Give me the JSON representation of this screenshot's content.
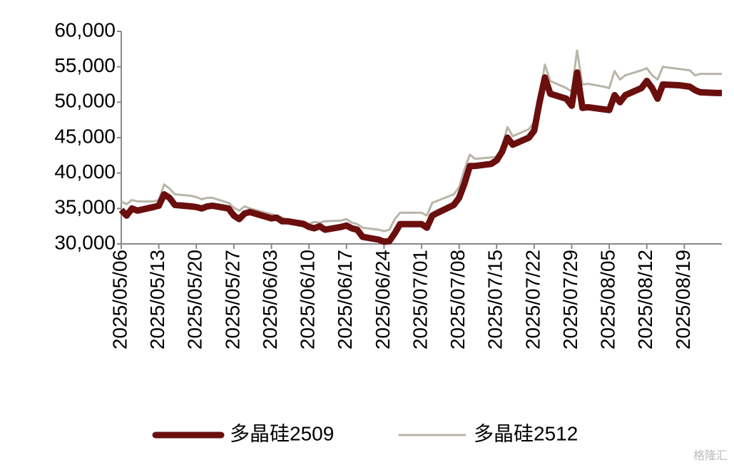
{
  "chart_data": {
    "type": "line",
    "x": [
      "2025/05/06",
      "2025/05/07",
      "2025/05/08",
      "2025/05/09",
      "2025/05/12",
      "2025/05/13",
      "2025/05/14",
      "2025/05/15",
      "2025/05/16",
      "2025/05/19",
      "2025/05/20",
      "2025/05/21",
      "2025/05/22",
      "2025/05/23",
      "2025/05/26",
      "2025/05/27",
      "2025/05/28",
      "2025/05/29",
      "2025/05/30",
      "2025/06/03",
      "2025/06/04",
      "2025/06/05",
      "2025/06/06",
      "2025/06/09",
      "2025/06/10",
      "2025/06/11",
      "2025/06/12",
      "2025/06/13",
      "2025/06/16",
      "2025/06/17",
      "2025/06/18",
      "2025/06/19",
      "2025/06/20",
      "2025/06/23",
      "2025/06/24",
      "2025/06/25",
      "2025/06/26",
      "2025/06/27",
      "2025/06/30",
      "2025/07/01",
      "2025/07/02",
      "2025/07/03",
      "2025/07/04",
      "2025/07/07",
      "2025/07/08",
      "2025/07/09",
      "2025/07/10",
      "2025/07/11",
      "2025/07/14",
      "2025/07/15",
      "2025/07/16",
      "2025/07/17",
      "2025/07/18",
      "2025/07/21",
      "2025/07/22",
      "2025/07/23",
      "2025/07/24",
      "2025/07/25",
      "2025/07/28",
      "2025/07/29",
      "2025/07/30",
      "2025/07/31",
      "2025/08/01",
      "2025/08/04",
      "2025/08/05",
      "2025/08/06",
      "2025/08/07",
      "2025/08/08",
      "2025/08/11",
      "2025/08/12",
      "2025/08/13",
      "2025/08/14",
      "2025/08/15",
      "2025/08/18",
      "2025/08/19",
      "2025/08/20",
      "2025/08/21",
      "2025/08/22",
      "2025/08/25",
      "2025/08/26"
    ],
    "xlim": [
      "2025/05/06",
      "2025/08/26"
    ],
    "xticks": [
      "2025/05/06",
      "2025/05/13",
      "2025/05/20",
      "2025/05/27",
      "2025/06/03",
      "2025/06/10",
      "2025/06/17",
      "2025/06/24",
      "2025/07/01",
      "2025/07/08",
      "2025/07/15",
      "2025/07/22",
      "2025/07/29",
      "2025/08/05",
      "2025/08/12",
      "2025/08/19"
    ],
    "ylim": [
      30000,
      60000
    ],
    "yticks": [
      {
        "value": 30000,
        "label": "30,000"
      },
      {
        "value": 35000,
        "label": "35,000"
      },
      {
        "value": 40000,
        "label": "40,000"
      },
      {
        "value": 45000,
        "label": "45,000"
      },
      {
        "value": 50000,
        "label": "50,000"
      },
      {
        "value": 55000,
        "label": "55,000"
      },
      {
        "value": 60000,
        "label": "60,000"
      }
    ],
    "grid": false,
    "series": [
      {
        "name": "多晶硅2509",
        "color": "#6b0e0e",
        "values": [
          34800,
          34000,
          35000,
          34700,
          35200,
          35400,
          37000,
          36500,
          35500,
          35300,
          35200,
          35000,
          35300,
          35400,
          35000,
          34000,
          33500,
          34300,
          34500,
          33600,
          33700,
          33200,
          33200,
          32800,
          32400,
          32200,
          32500,
          32000,
          32400,
          32600,
          32200,
          32000,
          31000,
          30600,
          30300,
          30400,
          31500,
          32800,
          32800,
          32800,
          32300,
          34000,
          34400,
          35500,
          36500,
          38500,
          41000,
          41000,
          41300,
          41800,
          43000,
          45000,
          44000,
          45000,
          46000,
          50000,
          53500,
          51200,
          50500,
          49500,
          54200,
          49200,
          49300,
          49000,
          48900,
          51000,
          50000,
          51000,
          52000,
          53000,
          52000,
          50500,
          52500,
          52400,
          52300,
          52200,
          51700,
          51400,
          51300,
          51300
        ]
      },
      {
        "name": "多晶硅2512",
        "color": "#b8b5a8",
        "values": [
          36000,
          35600,
          36200,
          36000,
          36000,
          36200,
          38400,
          37800,
          37000,
          36800,
          36600,
          36300,
          36500,
          36500,
          35800,
          35100,
          34700,
          35300,
          35000,
          34200,
          34000,
          33700,
          33400,
          33200,
          32800,
          33100,
          33000,
          33200,
          33300,
          33500,
          33000,
          32800,
          32300,
          32000,
          31800,
          32000,
          33500,
          34400,
          34400,
          34400,
          34000,
          35800,
          36100,
          37000,
          38000,
          40500,
          42600,
          42000,
          42200,
          42300,
          43600,
          46500,
          45200,
          46200,
          47200,
          50800,
          55300,
          53000,
          52000,
          51500,
          57300,
          52500,
          52600,
          52200,
          52000,
          54400,
          53200,
          53800,
          54500,
          54800,
          53800,
          53200,
          55000,
          54700,
          54600,
          54500,
          53800,
          54000,
          54000,
          54000
        ]
      }
    ],
    "watermark": "格隆汇"
  }
}
